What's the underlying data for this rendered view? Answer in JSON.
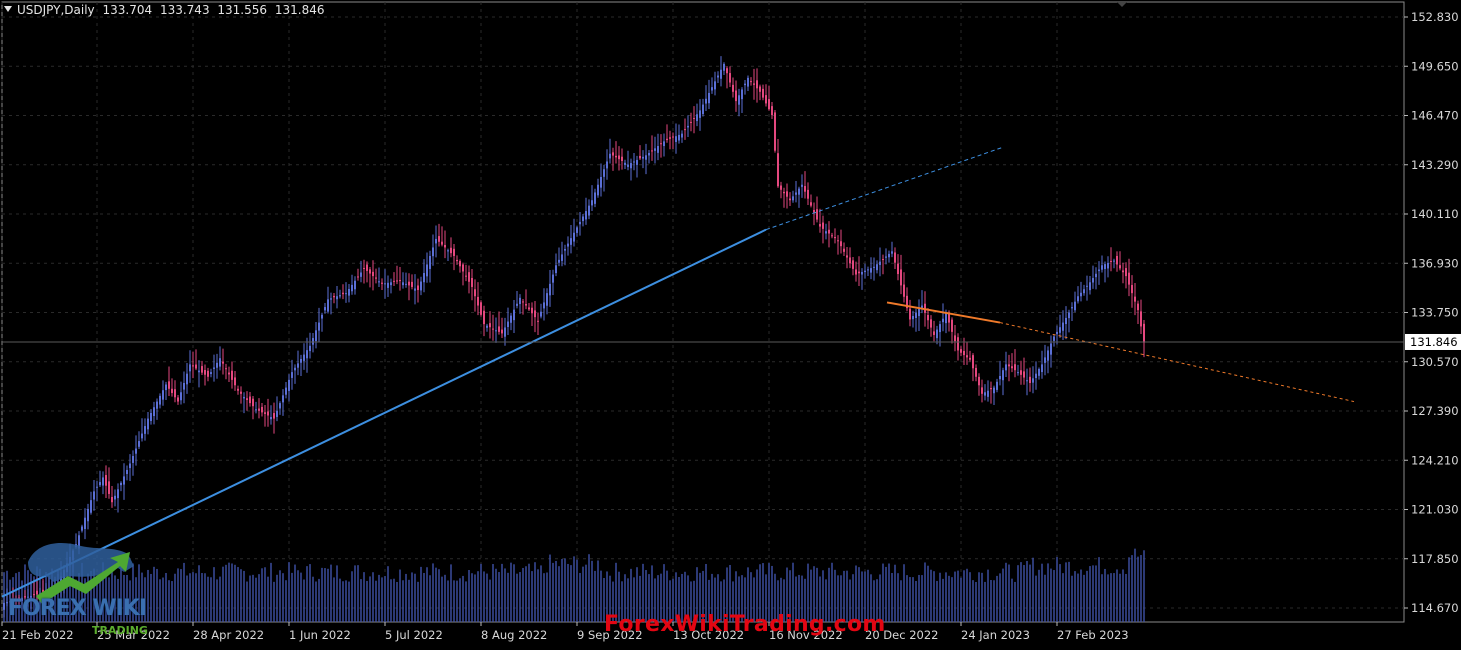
{
  "header": {
    "symbol": "USDJPY,Daily",
    "open": "133.704",
    "high": "133.743",
    "low": "131.556",
    "close": "131.846"
  },
  "current_price_label": "131.846",
  "watermark": "ForexWikiTrading.com",
  "logo": {
    "main": "FOREX WIKI",
    "sub": "TRADING"
  },
  "colors": {
    "background": "#000000",
    "bull_candle": "#5b6fd6",
    "bear_candle": "#e5487f",
    "volume": "#3f52a8",
    "trendline_blue": "#3d8fe0",
    "trendline_orange": "#f07a2a",
    "grid": "#2a2a2a"
  },
  "chart_data": {
    "type": "candlestick",
    "title": "",
    "ylim": [
      113.0,
      154.0
    ],
    "y_ticks": [
      "152.830",
      "149.650",
      "146.470",
      "143.290",
      "140.110",
      "136.930",
      "133.750",
      "130.570",
      "127.390",
      "124.210",
      "121.030",
      "117.850",
      "114.670"
    ],
    "x_ticks": [
      "21 Feb 2022",
      "25 Mar 2022",
      "28 Apr 2022",
      "1 Jun 2022",
      "5 Jul 2022",
      "8 Aug 2022",
      "9 Sep 2022",
      "13 Oct 2022",
      "16 Nov 2022",
      "20 Dec 2022",
      "24 Jan 2023",
      "27 Feb 2023"
    ],
    "current_price": 131.846,
    "bar_count": 266,
    "close_path": [
      [
        0,
        115.0
      ],
      [
        12,
        115.6
      ],
      [
        18,
        116.3
      ],
      [
        24,
        118.8
      ],
      [
        30,
        122.2
      ],
      [
        33,
        123.1
      ],
      [
        36,
        121.5
      ],
      [
        42,
        124.0
      ],
      [
        48,
        126.9
      ],
      [
        54,
        129.1
      ],
      [
        58,
        128.0
      ],
      [
        62,
        130.4
      ],
      [
        68,
        129.6
      ],
      [
        72,
        130.8
      ],
      [
        78,
        128.7
      ],
      [
        84,
        127.5
      ],
      [
        90,
        126.9
      ],
      [
        96,
        129.9
      ],
      [
        102,
        131.6
      ],
      [
        108,
        134.6
      ],
      [
        114,
        135.0
      ],
      [
        120,
        136.6
      ],
      [
        126,
        135.6
      ],
      [
        132,
        135.8
      ],
      [
        138,
        135.2
      ],
      [
        144,
        138.5
      ],
      [
        150,
        137.4
      ],
      [
        156,
        135.4
      ],
      [
        160,
        133.0
      ],
      [
        166,
        132.4
      ],
      [
        172,
        134.7
      ],
      [
        178,
        133.2
      ],
      [
        184,
        136.8
      ],
      [
        190,
        138.9
      ],
      [
        196,
        141.0
      ],
      [
        202,
        144.0
      ],
      [
        208,
        143.3
      ],
      [
        214,
        143.9
      ],
      [
        220,
        144.8
      ],
      [
        226,
        145.3
      ],
      [
        232,
        146.8
      ],
      [
        236,
        148.3
      ],
      [
        240,
        149.8
      ],
      [
        244,
        147.4
      ],
      [
        248,
        148.9
      ],
      [
        252,
        148.0
      ],
      [
        256,
        146.5
      ],
      [
        258,
        141.9
      ],
      [
        262,
        141.0
      ],
      [
        266,
        142.0
      ]
    ],
    "close_path_tail": [
      [
        0,
        142.0
      ],
      [
        6,
        139.3
      ],
      [
        12,
        138.4
      ],
      [
        18,
        136.2
      ],
      [
        24,
        136.7
      ],
      [
        30,
        137.7
      ],
      [
        36,
        133.3
      ],
      [
        40,
        134.2
      ],
      [
        44,
        132.3
      ],
      [
        48,
        133.7
      ],
      [
        52,
        131.3
      ],
      [
        56,
        130.7
      ],
      [
        60,
        128.5
      ],
      [
        64,
        128.9
      ],
      [
        68,
        130.4
      ],
      [
        72,
        129.9
      ],
      [
        76,
        129.2
      ],
      [
        80,
        130.4
      ],
      [
        84,
        132.2
      ],
      [
        88,
        133.4
      ],
      [
        92,
        134.8
      ],
      [
        96,
        135.7
      ],
      [
        100,
        136.8
      ],
      [
        104,
        137.1
      ],
      [
        108,
        136.1
      ],
      [
        112,
        133.9
      ],
      [
        114,
        131.8
      ]
    ],
    "trendlines": [
      {
        "name": "",
        "from": [
          "21 Feb 2022",
          115.4
        ],
        "to": [
          "16 Nov 2022",
          139.1
        ],
        "extended_to": 144.4
      },
      {
        "name": "",
        "from": [
          "20 Dec 2022",
          134.4
        ],
        "to": [
          "24 Jan 2023",
          133.1
        ],
        "extended_to": 128.0
      }
    ],
    "grid": true
  }
}
